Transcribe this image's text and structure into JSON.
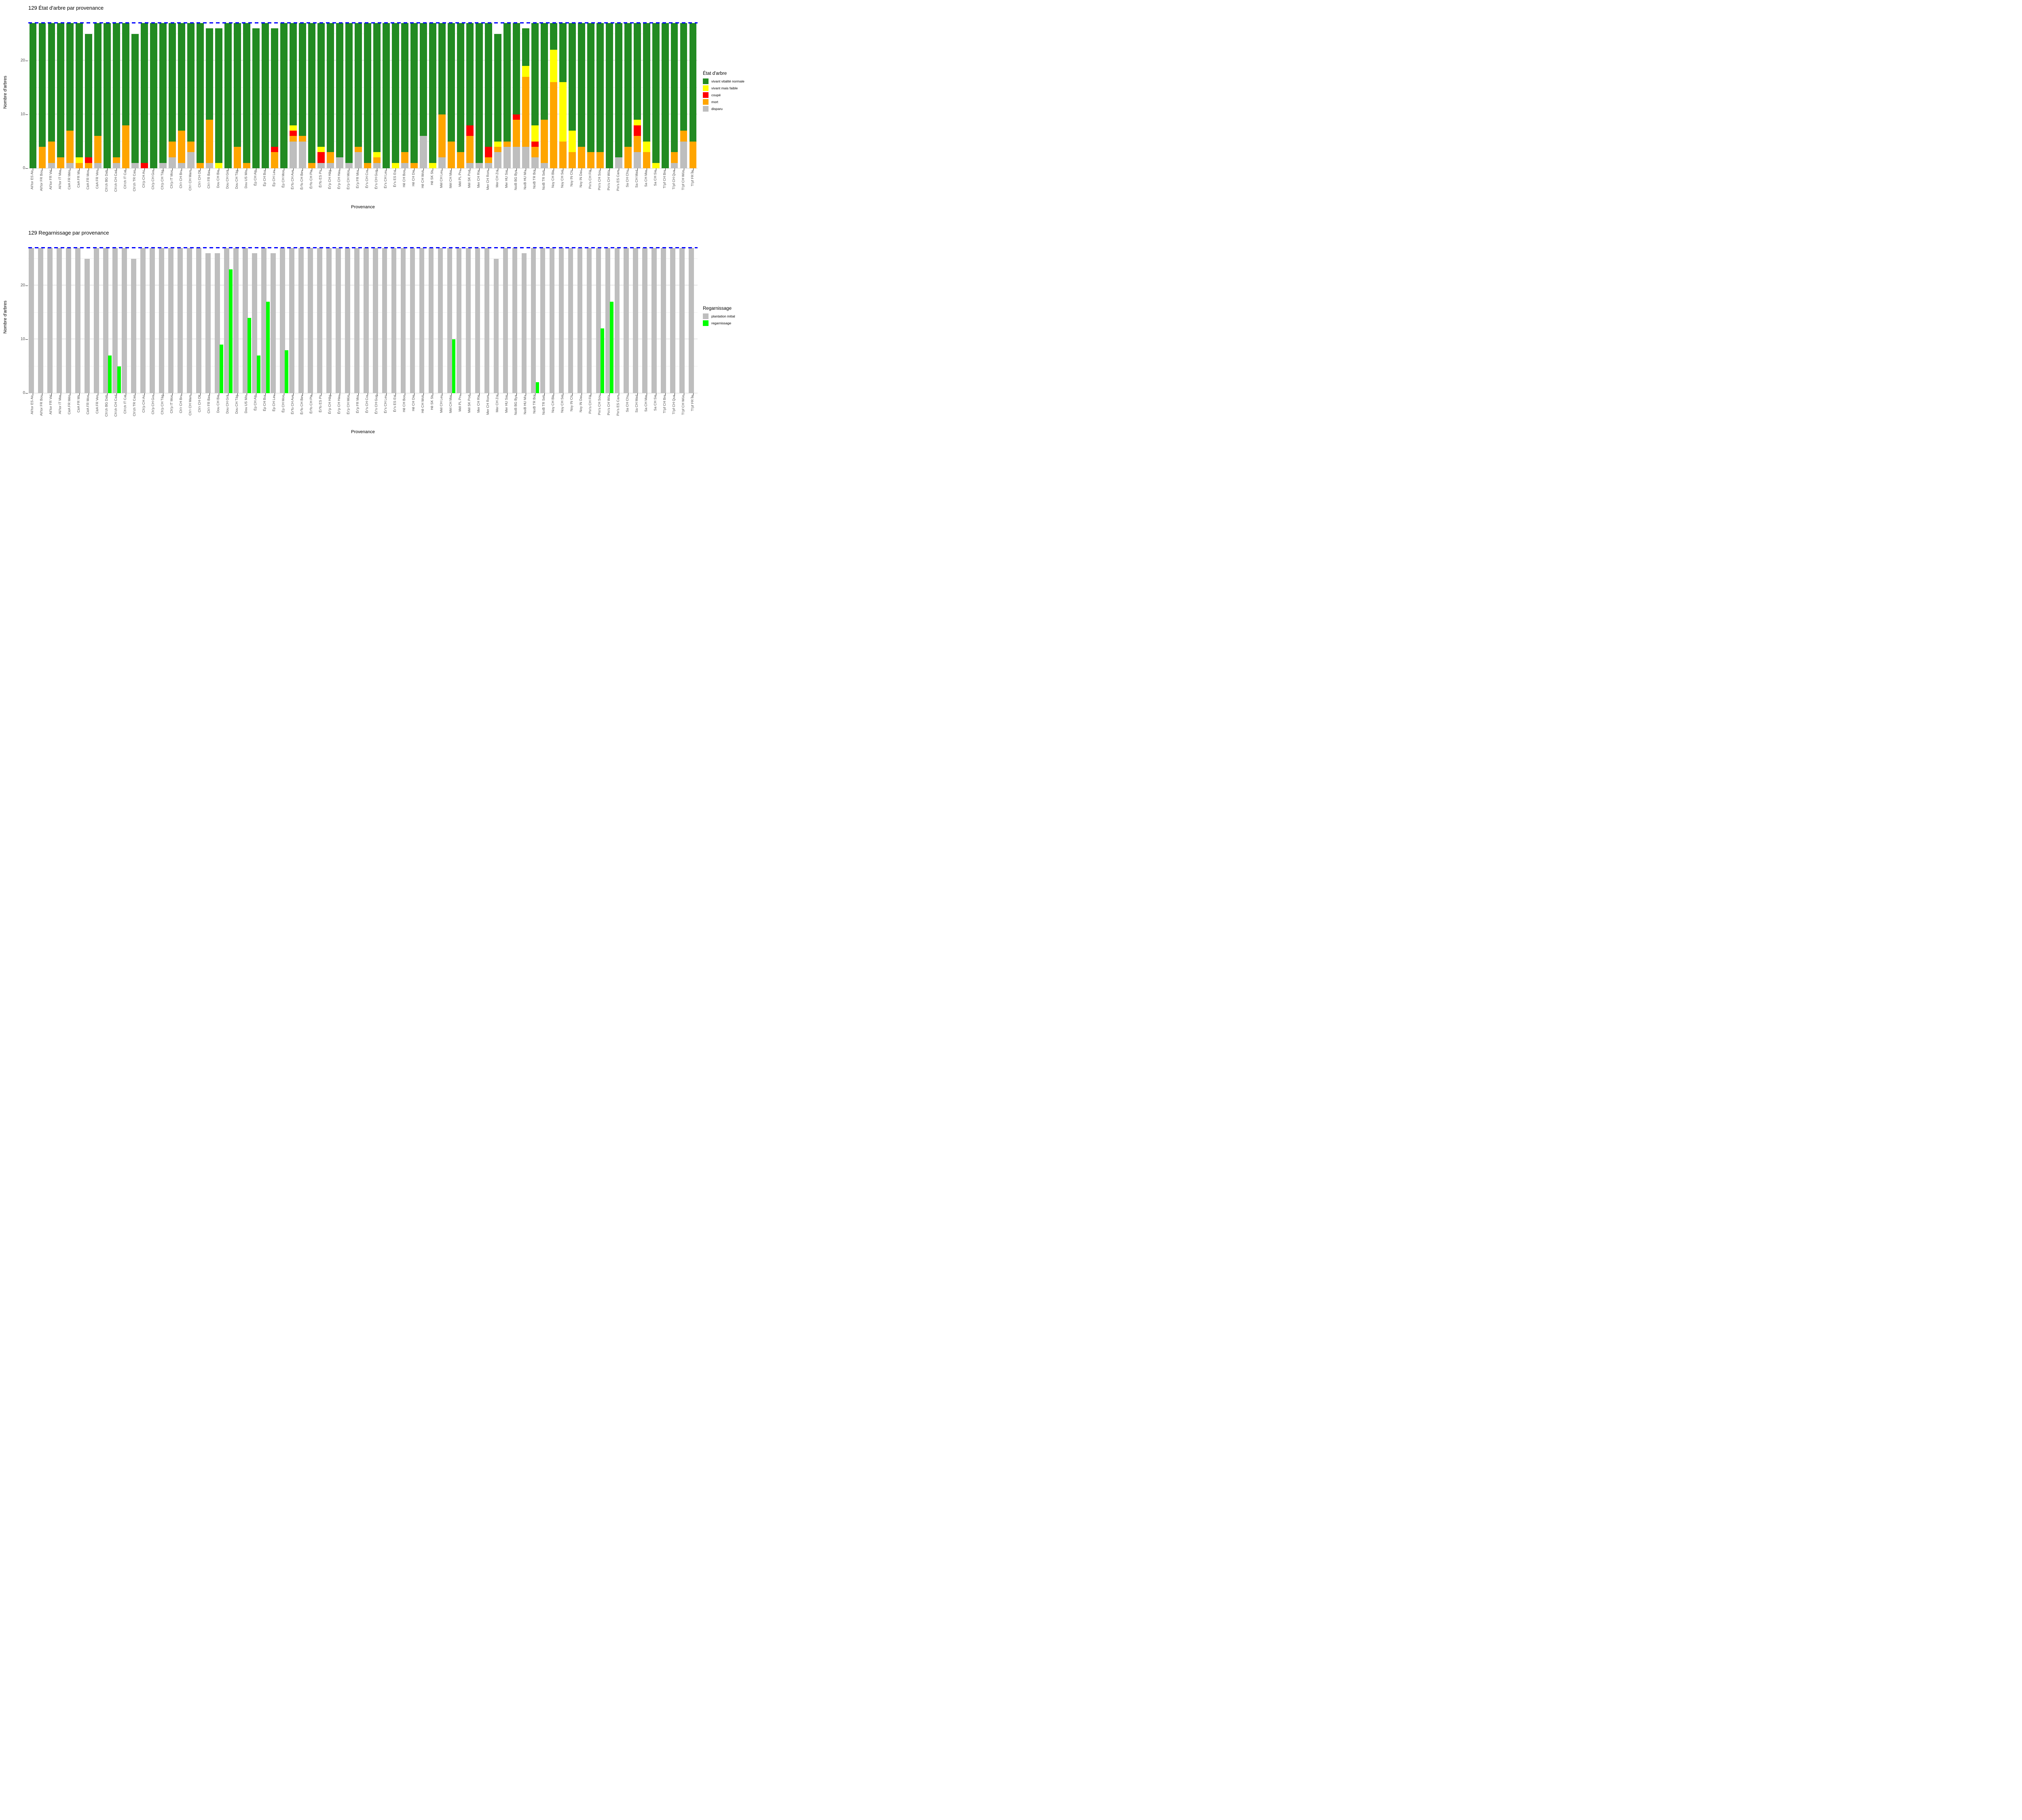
{
  "page_title": "129",
  "chart_data": [
    {
      "type": "bar",
      "stacked": true,
      "title": "129 État d'arbre par provenance",
      "xlabel": "Provenance",
      "ylabel": "Nombre d'arbres",
      "ylim": [
        0,
        28
      ],
      "yticks": [
        0,
        10,
        20
      ],
      "grid": "on",
      "legend_position": "right",
      "legend_title": "État d'arbre",
      "reference_line": {
        "y": 27,
        "style": "dashed",
        "color": "#0000ff"
      },
      "categories": [
        "Ali'tor ES Alc",
        "Ali'tor FR Bou",
        "Ali'tor FR Val",
        "Ali'tor IT Mar",
        "CèA FR Mén",
        "CèA FR Mir",
        "CèA FR Mon",
        "CèA FR Ven",
        "Ch'ch BG Dab",
        "Ch'ch CH Cad",
        "Ch'ch IT Cat",
        "Ch'ch TR Can",
        "Ch'p CH Ari",
        "Ch'p CH Gor",
        "Ch'p CH Täg",
        "Ch'p IT Mon",
        "Ch'r CH Bru",
        "Ch'r CH Mam",
        "Ch'r CH Olt",
        "Ch'r FR Bas",
        "Dou CH Bie",
        "Dou CH Grä",
        "Dou CH Täg",
        "Dou US Min",
        "Ép CH Alp",
        "Ép CH Bur",
        "Ép CH Lav",
        "Ép CH Mon",
        "Ér'fo CH Ave",
        "Ér'fo CH Bev",
        "Ér'fo CH Pla",
        "Ér'fo ES Pir",
        "Ér'p CH Häg",
        "Ér'p CH Hau",
        "Ér'p CH Mün",
        "Ér'p FR Mor",
        "Ér's CH Cor",
        "Ér's CH Gug",
        "Ér's CH Leu",
        "Ér's ES Est",
        "Hê CH Bon",
        "Hê CH Die",
        "Hê CH Woh",
        "Hê SK Str",
        "Mél CH Leu",
        "Mél CH Mar",
        "Mél PL Pru",
        "Mél SK Pod",
        "Mer CH Rie",
        "Mer CH Rom",
        "Mer CH Zol",
        "Mer HU Sar",
        "NoiB BG Bya",
        "NoiB HU Mix",
        "NoiB TR Bol",
        "NoiB TR Seb",
        "Noy CH Ble",
        "Noy CH Sel",
        "Noy IN Chi",
        "Noy IN Dac",
        "Pin's CH Flä",
        "Pin's CH Sou",
        "Pin's CH Wür",
        "Pin's ES Cam",
        "Sa CH Chu",
        "Sa CH Mad",
        "Sa CH Mar",
        "Sa CH Sie",
        "Ti'pf CH Bre",
        "Ti'pf CH Qua",
        "Ti'pf CH Wün",
        "Ti'pf FR Île"
      ],
      "series": [
        {
          "name": "disparu",
          "color": "#bebebe",
          "values": [
            0,
            0,
            1,
            0,
            1,
            0,
            0,
            1,
            0,
            1,
            0,
            1,
            0,
            0,
            1,
            2,
            1,
            3,
            0,
            1,
            0,
            0,
            0,
            0,
            0,
            0,
            0,
            0,
            5,
            5,
            0,
            1,
            1,
            2,
            1,
            3,
            0,
            1,
            0,
            0,
            1,
            0,
            6,
            0,
            2,
            0,
            0,
            1,
            1,
            1,
            3,
            4,
            4,
            4,
            2,
            1,
            0,
            0,
            0,
            0,
            0,
            0,
            0,
            2,
            0,
            3,
            0,
            0,
            0,
            1,
            5,
            0
          ]
        },
        {
          "name": "mort",
          "color": "#ffa500",
          "values": [
            0,
            4,
            4,
            2,
            6,
            1,
            1,
            5,
            0,
            1,
            8,
            0,
            0,
            0,
            0,
            3,
            6,
            2,
            1,
            8,
            0,
            0,
            4,
            1,
            0,
            0,
            3,
            0,
            1,
            1,
            1,
            0,
            2,
            0,
            0,
            1,
            1,
            1,
            0,
            0,
            2,
            1,
            0,
            0,
            8,
            5,
            3,
            5,
            0,
            1,
            1,
            1,
            5,
            13,
            2,
            8,
            16,
            5,
            3,
            4,
            3,
            3,
            0,
            0,
            4,
            3,
            3,
            0,
            0,
            2,
            2,
            5
          ]
        },
        {
          "name": "coupé",
          "color": "#ff0000",
          "values": [
            0,
            0,
            0,
            0,
            0,
            0,
            1,
            0,
            0,
            0,
            0,
            0,
            1,
            0,
            0,
            0,
            0,
            0,
            0,
            0,
            0,
            0,
            0,
            0,
            0,
            0,
            1,
            0,
            1,
            0,
            0,
            2,
            0,
            0,
            0,
            0,
            0,
            0,
            0,
            0,
            0,
            0,
            0,
            0,
            0,
            0,
            0,
            2,
            0,
            2,
            0,
            0,
            1,
            0,
            1,
            0,
            0,
            0,
            0,
            0,
            0,
            0,
            0,
            0,
            0,
            2,
            0,
            0,
            0,
            0,
            0,
            0
          ]
        },
        {
          "name": "vivant mais faible",
          "color": "#ffff00",
          "values": [
            0,
            0,
            0,
            0,
            0,
            1,
            0,
            0,
            0,
            0,
            0,
            0,
            0,
            0,
            0,
            0,
            0,
            0,
            0,
            0,
            1,
            0,
            0,
            0,
            0,
            0,
            0,
            0,
            1,
            0,
            0,
            1,
            0,
            0,
            0,
            0,
            0,
            1,
            0,
            1,
            0,
            0,
            0,
            1,
            0,
            0,
            0,
            0,
            0,
            0,
            1,
            0,
            0,
            2,
            3,
            0,
            6,
            11,
            4,
            0,
            0,
            0,
            0,
            0,
            0,
            1,
            2,
            1,
            0,
            0,
            0,
            0
          ]
        },
        {
          "name": "vivant vitalité normale",
          "color": "#228b22",
          "values": [
            27,
            23,
            22,
            25,
            20,
            25,
            23,
            21,
            27,
            25,
            19,
            24,
            26,
            27,
            26,
            22,
            20,
            22,
            26,
            17,
            25,
            27,
            23,
            26,
            26,
            27,
            22,
            27,
            19,
            21,
            26,
            23,
            24,
            25,
            26,
            23,
            26,
            24,
            27,
            26,
            24,
            26,
            21,
            26,
            17,
            22,
            24,
            19,
            26,
            23,
            20,
            22,
            17,
            7,
            19,
            18,
            5,
            11,
            20,
            23,
            24,
            24,
            27,
            25,
            23,
            18,
            22,
            26,
            27,
            24,
            20,
            22
          ]
        }
      ],
      "legend_order": [
        "vivant vitalité normale",
        "vivant mais faible",
        "coupé",
        "mort",
        "disparu"
      ]
    },
    {
      "type": "bar",
      "grouped": true,
      "title": "129 Regarnissage par provenance",
      "xlabel": "Provenance",
      "ylabel": "Nombre d'arbres",
      "ylim": [
        0,
        28
      ],
      "yticks": [
        0,
        10,
        20
      ],
      "grid": "on",
      "legend_position": "right",
      "legend_title": "Regarnissage",
      "reference_line": {
        "y": 27,
        "style": "dashed",
        "color": "#0000ff"
      },
      "categories": [
        "Ali'tor ES Alc",
        "Ali'tor FR Bou",
        "Ali'tor FR Val",
        "Ali'tor IT Mar",
        "CèA FR Mén",
        "CèA FR Mir",
        "CèA FR Mon",
        "CèA FR Ven",
        "Ch'ch BG Dab",
        "Ch'ch CH Cad",
        "Ch'ch IT Cat",
        "Ch'ch TR Can",
        "Ch'p CH Ari",
        "Ch'p CH Gor",
        "Ch'p CH Täg",
        "Ch'p IT Mon",
        "Ch'r CH Bru",
        "Ch'r CH Mam",
        "Ch'r CH Olt",
        "Ch'r FR Bas",
        "Dou CH Bie",
        "Dou CH Grä",
        "Dou CH Täg",
        "Dou US Min",
        "Ép CH Alp",
        "Ép CH Bur",
        "Ép CH Lav",
        "Ép CH Mon",
        "Ér'fo CH Ave",
        "Ér'fo CH Bev",
        "Ér'fo CH Pla",
        "Ér'fo ES Pir",
        "Ér'p CH Häg",
        "Ér'p CH Hau",
        "Ér'p CH Mün",
        "Ér'p FR Mor",
        "Ér's CH Cor",
        "Ér's CH Gug",
        "Ér's CH Leu",
        "Ér's ES Est",
        "Hê CH Bon",
        "Hê CH Die",
        "Hê CH Woh",
        "Hê SK Str",
        "Mél CH Leu",
        "Mél CH Mar",
        "Mél PL Pru",
        "Mél SK Pod",
        "Mer CH Rie",
        "Mer CH Rom",
        "Mer CH Zol",
        "Mer HU Sar",
        "NoiB BG Bya",
        "NoiB HU Mix",
        "NoiB TR Bol",
        "NoiB TR Seb",
        "Noy CH Ble",
        "Noy CH Sel",
        "Noy IN Chi",
        "Noy IN Dac",
        "Pin's CH Flä",
        "Pin's CH Sou",
        "Pin's CH Wür",
        "Pin's ES Cam",
        "Sa CH Chu",
        "Sa CH Mad",
        "Sa CH Mar",
        "Sa CH Sie",
        "Ti'pf CH Bre",
        "Ti'pf CH Qua",
        "Ti'pf CH Wün",
        "Ti'pf FR Île"
      ],
      "series": [
        {
          "name": "plantation initial",
          "color": "#bebebe",
          "values": [
            27,
            27,
            27,
            27,
            27,
            27,
            25,
            27,
            27,
            27,
            27,
            25,
            27,
            27,
            27,
            27,
            27,
            27,
            27,
            26,
            26,
            27,
            27,
            27,
            26,
            27,
            26,
            27,
            27,
            27,
            27,
            27,
            27,
            27,
            27,
            27,
            27,
            27,
            27,
            27,
            27,
            27,
            27,
            27,
            27,
            27,
            27,
            27,
            27,
            27,
            25,
            27,
            27,
            26,
            27,
            27,
            27,
            27,
            27,
            27,
            27,
            27,
            27,
            27,
            27,
            27,
            27,
            27,
            27,
            27,
            27,
            27
          ]
        },
        {
          "name": "regarnissage",
          "color": "#00ff00",
          "values": [
            0,
            0,
            0,
            0,
            0,
            0,
            0,
            0,
            7,
            5,
            0,
            0,
            0,
            0,
            0,
            0,
            0,
            0,
            0,
            0,
            9,
            23,
            0,
            14,
            7,
            17,
            0,
            8,
            0,
            0,
            0,
            0,
            0,
            0,
            0,
            0,
            0,
            0,
            0,
            0,
            0,
            0,
            0,
            0,
            0,
            10,
            0,
            0,
            0,
            0,
            0,
            0,
            0,
            0,
            2,
            0,
            0,
            0,
            0,
            0,
            0,
            12,
            17,
            0,
            0,
            0,
            0,
            0,
            0,
            0,
            0,
            0
          ]
        }
      ],
      "legend_order": [
        "plantation initial",
        "regarnissage"
      ]
    }
  ]
}
